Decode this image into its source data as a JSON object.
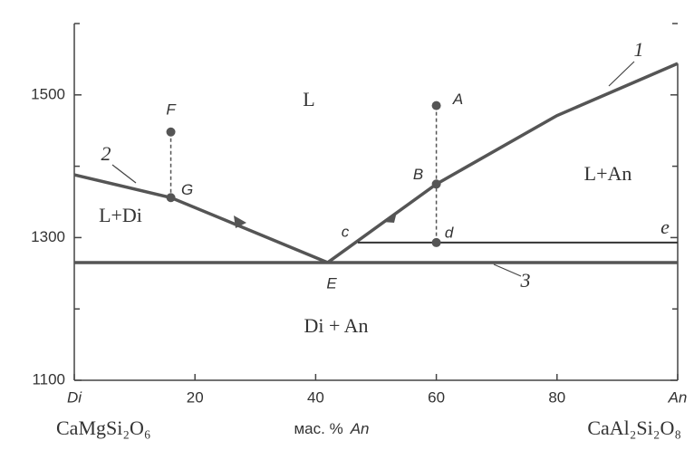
{
  "chart_data": {
    "type": "line",
    "xlim": [
      0,
      100
    ],
    "ylim": [
      1100,
      1600
    ],
    "xticks": [
      {
        "value": 0,
        "label": "Di"
      },
      20,
      40,
      60,
      80,
      {
        "value": 100,
        "label": "An"
      }
    ],
    "yticks": [
      1100,
      1300,
      1500
    ],
    "yminor": [
      1200,
      1400,
      1600
    ],
    "xlabel": [
      "мас. %",
      "An"
    ],
    "left_component": "CaMgSi₂O₆",
    "right_component": "CaAl₂Si₂O₈",
    "series": [
      {
        "label": "2",
        "color": "#555555",
        "x": [
          0,
          16,
          42
        ],
        "values": [
          1388,
          1356,
          1265
        ]
      },
      {
        "label": "1",
        "color": "#555555",
        "x": [
          42,
          60,
          80,
          100
        ],
        "values": [
          1265,
          1375,
          1471,
          1544
        ]
      },
      {
        "label": "3",
        "color": "#555555",
        "x": [
          0,
          100
        ],
        "values": [
          1265,
          1265
        ]
      },
      {
        "label": "e",
        "color": "#333333",
        "x": [
          47,
          100
        ],
        "values": [
          1293,
          1293
        ]
      }
    ],
    "points": [
      {
        "label": "F",
        "x": 16,
        "y": 1448
      },
      {
        "label": "G",
        "x": 16,
        "y": 1356
      },
      {
        "label": "A",
        "x": 60,
        "y": 1485
      },
      {
        "label": "B",
        "x": 60,
        "y": 1375
      },
      {
        "label": "d",
        "x": 60,
        "y": 1293
      }
    ],
    "point_labels": [
      "c",
      "E"
    ],
    "regions": [
      "L",
      "L+An",
      "L+Di",
      "Di + An"
    ]
  }
}
